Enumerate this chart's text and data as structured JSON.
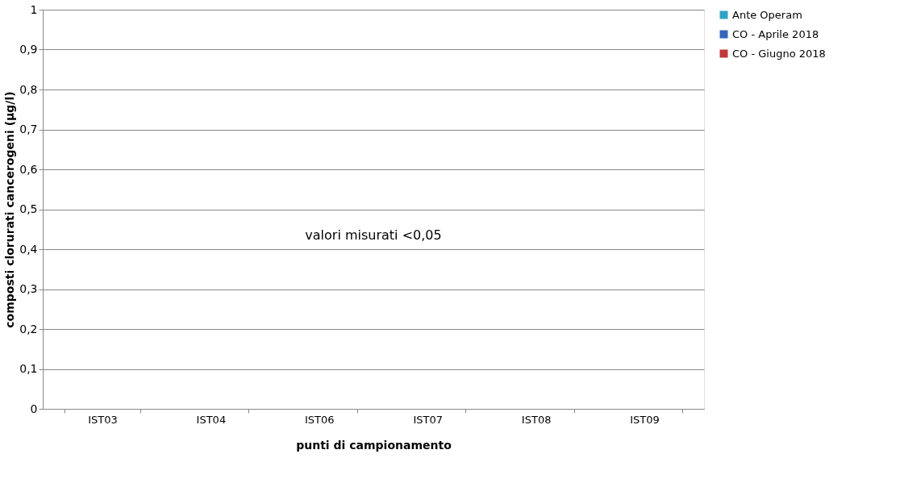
{
  "chart_data": {
    "type": "bar",
    "xlabel": "punti di campionamento",
    "ylabel": "composti clorurati cancerogeni (µg/l)",
    "categories": [
      "IST03",
      "IST04",
      "IST06",
      "IST07",
      "IST08",
      "IST09"
    ],
    "series": [
      {
        "name": "Ante Operam",
        "color": "#2fa3c4",
        "values": [
          null,
          null,
          null,
          null,
          null,
          null
        ]
      },
      {
        "name": "CO - Aprile 2018",
        "color": "#3566b8",
        "values": [
          null,
          null,
          null,
          null,
          null,
          null
        ]
      },
      {
        "name": "CO - Giugno 2018",
        "color": "#c0383a",
        "values": [
          null,
          null,
          null,
          null,
          null,
          null
        ]
      }
    ],
    "ylim": [
      0,
      1
    ],
    "yticks": [
      0,
      {
        "value": 0.1,
        "label": "0,1"
      },
      {
        "value": 0.2,
        "label": "0,2"
      },
      {
        "value": 0.3,
        "label": "0,3"
      },
      {
        "value": 0.4,
        "label": "0,4"
      },
      {
        "value": 0.5,
        "label": "0,5"
      },
      {
        "value": 0.6,
        "label": "0,6"
      },
      {
        "value": 0.7,
        "label": "0,7"
      },
      {
        "value": 0.8,
        "label": "0,8"
      },
      {
        "value": 0.9,
        "label": "0,9"
      },
      1
    ],
    "grid": "y",
    "legend": "right",
    "annotations": [
      "valori misurati  <0,05"
    ]
  }
}
